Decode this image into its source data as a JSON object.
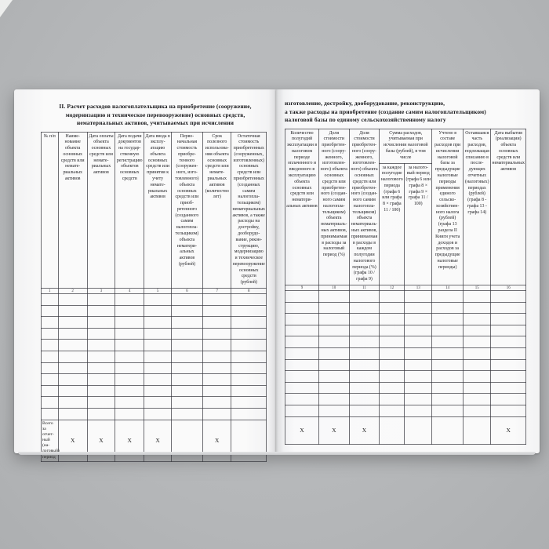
{
  "left_page": {
    "title_lines": [
      "II. Расчет расходов налогоплательщика на приобретение (сооружение,",
      "модернизацию и техническое перевооружение) основных средств,",
      "нематериальных активов, учитываемых при исчислении"
    ],
    "table": {
      "headers": [
        "№ п/п",
        "Наиме­нование объекта основных средств или немате­риальных активов",
        "Дата оплаты объекта основных средств или немате­риальных активов",
        "Дата подачи документов на государ­ственную регистрацию объектов основных средств",
        "Дата ввода в эксплу­атацию объекта основных средств или принятия к учету немате­риальных активов",
        "Перво­начальная стоимость приобре­тенного (сооружен­ного, изго­товленного) объекта основных средств или приоб­ретенного (созданного самим налогопла­тельщиком) объекта нематери­альных активов (рублей)",
        "Срок полезного использова­ния объекта основных средств или немате­риальных активов (количество лет)",
        "Остаточная стоимость приобретен­ных (соору­женных, изготовлен­ных) основ­ных средств или приобре­тенных (создан­ных самим налогопла­тельщиком) немате­риальных активов, а также расходы на достройку, дооборудо­вание, рекон­струкцию, модерниза­цию и техни­ческое пере­вооружение основных средств (рублей)"
      ],
      "col_numbers": [
        "1",
        "2",
        "3",
        "4",
        "5",
        "6",
        "7",
        "8"
      ],
      "footer": {
        "label": "Всего за отчет­ный (на­логовый) период",
        "cells": [
          "X",
          "X",
          "X",
          "X",
          "",
          "X",
          ""
        ]
      }
    }
  },
  "right_page": {
    "title_lines": [
      "изготовление, достройку, дооборудование, реконструкцию,",
      "а также расходы на приобретение (создание самим налогоплательщиком)",
      "налоговой базы по единому сельскохозяйственному налогу"
    ],
    "table": {
      "col9": "Количество полугодий эксплу­атации в налоговом периоде оплаченного и введен­ного в экс­плуатацию объекта основных средств или нематери­альных активов",
      "col10": "Доля стоимости приобретен­ного (соору­женного, изготовлен­ного) объекта основных средств или приобретен­ного (создан­ного самим налогопла­тельщиком) объекта нематериаль­ных активов, принимаемая в расходы за налоговый период (%)",
      "col11": "Доля стоимости приобретен­ного (соору­женного, изготовлен­ного) объекта основных средств или приобретен­ного (создан­ного самим налогопла­тельщиком) объекта нематериаль­ных активов, принимаемая в расходы в каждом полугодии налогового периода (%) (графа 10 / графа 9)",
      "group_header": "Сумма расходов, учитываемая при исчислении налоговой базы (рублей), в том числе",
      "sub12": "за каждое полугодие нало­гового периода (графа 6 или графа 8 × графа 11 / 100)",
      "sub13": "за налого­вый период (графа 6 или графа 8 × графа 9 × графа 11 / 100)",
      "col14": "Учтено в составе расходов при исчисле­нии налого­вой базы за предыду­щие налого­вые периоды применения единого сельско­хозяйствен­ного налога (рублей) (графа 13 раздела II Книги учета доходов и расходов за предыду­щие налого­вые периоды)",
      "col15": "Оставшаяся часть расходов, подле­жащая списанию в после­дующих отчетных (налоговых) периодах (рублей) (графа 8 - графа 13 - графа 14)",
      "col16": "Дата выбытия (реали­зации) объекта основных средств или немате­риальных активов",
      "col_numbers": [
        "9",
        "10",
        "11",
        "12",
        "13",
        "14",
        "15",
        "16"
      ],
      "footer_cells": [
        "X",
        "X",
        "X",
        "",
        "",
        "",
        "",
        "X"
      ]
    }
  }
}
